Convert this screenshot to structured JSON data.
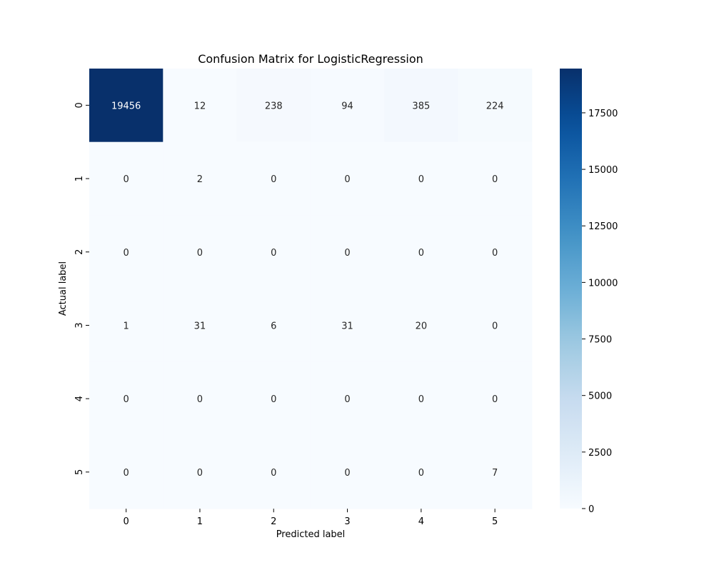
{
  "chart_data": {
    "type": "heatmap",
    "title": "Confusion Matrix for LogisticRegression",
    "xlabel": "Predicted label",
    "ylabel": "Actual label",
    "x_categories": [
      "0",
      "1",
      "2",
      "3",
      "4",
      "5"
    ],
    "y_categories": [
      "0",
      "1",
      "2",
      "3",
      "4",
      "5"
    ],
    "values": [
      [
        19456,
        12,
        238,
        94,
        385,
        224
      ],
      [
        0,
        2,
        0,
        0,
        0,
        0
      ],
      [
        0,
        0,
        0,
        0,
        0,
        0
      ],
      [
        1,
        31,
        6,
        31,
        20,
        0
      ],
      [
        0,
        0,
        0,
        0,
        0,
        0
      ],
      [
        0,
        0,
        0,
        0,
        0,
        7
      ]
    ],
    "colormap": "Blues",
    "colorbar": {
      "range": [
        0,
        19456
      ],
      "ticks": [
        0,
        2500,
        5000,
        7500,
        10000,
        12500,
        15000,
        17500
      ]
    },
    "grid": false
  }
}
